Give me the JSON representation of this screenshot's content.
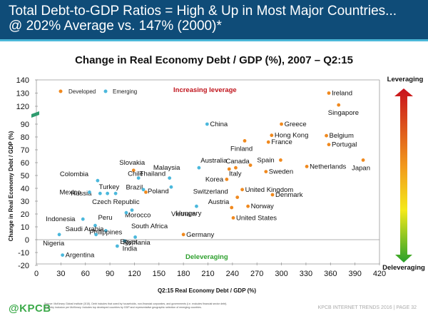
{
  "header": {
    "line1": "Total Debt-to-GDP Ratios = High & Up in Most Major Countries...",
    "line2": "@ 202% Average vs. 147% (2000)*"
  },
  "footer": {
    "logo": "@KPCB",
    "source_line1": "Source: McKinsey Global Institute (3/15). Debt includes that owed by households, non-financial corporates, and governments (i.e. excludes financial sector debt).",
    "source_line2": "*Country inclusion per McKinsey. Includes top developed countries by GDP and representative geographic selection of emerging countries.",
    "page_info": "KPCB INTERNET TRENDS 2016  |  PAGE 32"
  },
  "colors": {
    "header_bg": "#0f4c78",
    "header_stripe": "#4bb7d8",
    "developed": "#f0891e",
    "emerging": "#4bb8dc",
    "increasing_leverage": "#c0141c",
    "deleveraging": "#2ea02e",
    "logo": "#3caa4a"
  },
  "chart_data": {
    "type": "scatter",
    "title": "Change in Real Economy Debt / GDP (%), 2007 – Q2:15",
    "xlabel": "Q2:15 Real Economy Debt / GDP (%)",
    "ylabel": "Change in  Real Economy Debt / GDP (%)",
    "xlim": [
      0,
      420
    ],
    "ylim": [
      -20,
      140
    ],
    "y_axis_break": [
      90,
      120
    ],
    "x_ticks": [
      0,
      30,
      60,
      90,
      120,
      150,
      180,
      210,
      240,
      270,
      300,
      330,
      360,
      390,
      420
    ],
    "y_ticks": [
      -20,
      -10,
      0,
      10,
      20,
      30,
      40,
      50,
      60,
      70,
      80,
      90,
      120,
      130,
      140
    ],
    "grid": false,
    "legend": {
      "position": "top-left",
      "entries": [
        "Developed",
        "Emerging"
      ]
    },
    "annotations": {
      "increasing_leverage": "Increasing leverage",
      "deleveraging_inner": "Deleveraging",
      "arrow_top": "Leveraging",
      "arrow_bottom": "Deleveraging"
    },
    "series": [
      {
        "name": "Developed",
        "points": [
          {
            "label": "Ireland",
            "x": 358,
            "y": 130
          },
          {
            "label": "Singapore",
            "x": 370,
            "y": 121
          },
          {
            "label": "Hong Kong",
            "x": 288,
            "y": 98
          },
          {
            "label": "Portugal",
            "x": 358,
            "y": 91
          },
          {
            "label": "Greece",
            "x": 300,
            "y": 90
          },
          {
            "label": "Belgium",
            "x": 355,
            "y": 81
          },
          {
            "label": "France",
            "x": 284,
            "y": 76
          },
          {
            "label": "Finland",
            "x": 255,
            "y": 77
          },
          {
            "label": "Japan",
            "x": 400,
            "y": 62
          },
          {
            "label": "Spain",
            "x": 299,
            "y": 62
          },
          {
            "label": "Netherlands",
            "x": 331,
            "y": 57
          },
          {
            "label": "Canada",
            "x": 244,
            "y": 56
          },
          {
            "label": "Australia",
            "x": 236,
            "y": 55
          },
          {
            "label": "Italy",
            "x": 262,
            "y": 58
          },
          {
            "label": "Sweden",
            "x": 281,
            "y": 53
          },
          {
            "label": "Slovakia",
            "x": 119,
            "y": 54
          },
          {
            "label": "Korea",
            "x": 233,
            "y": 47
          },
          {
            "label": "United Kingdom",
            "x": 252,
            "y": 39
          },
          {
            "label": "Denmark",
            "x": 289,
            "y": 35
          },
          {
            "label": "Switzerland",
            "x": 246,
            "y": 33
          },
          {
            "label": "Brazil",
            "x": 134,
            "y": 37
          },
          {
            "label": "Austria",
            "x": 239,
            "y": 25
          },
          {
            "label": "Norway",
            "x": 259,
            "y": 26
          },
          {
            "label": "United States",
            "x": 241,
            "y": 17
          },
          {
            "label": "Germany",
            "x": 180,
            "y": 4
          }
        ]
      },
      {
        "name": "Emerging",
        "points": [
          {
            "label": "China",
            "x": 209,
            "y": 90
          },
          {
            "label": "Malaysia",
            "x": 199,
            "y": 56
          },
          {
            "label": "Thailand",
            "x": 163,
            "y": 48
          },
          {
            "label": "Chile",
            "x": 125,
            "y": 48
          },
          {
            "label": "Vietnam",
            "x": 165,
            "y": 41
          },
          {
            "label": "Colombia",
            "x": 75,
            "y": 46
          },
          {
            "label": "Russia",
            "x": 78,
            "y": 36
          },
          {
            "label": "Turkey",
            "x": 87,
            "y": 36
          },
          {
            "label": "Mexico",
            "x": 65,
            "y": 37
          },
          {
            "label": "Czech Republic",
            "x": 97,
            "y": 36
          },
          {
            "label": "Poland",
            "x": 131,
            "y": 39
          },
          {
            "label": "Morocco",
            "x": 117,
            "y": 23
          },
          {
            "label": "South Africa",
            "x": 110,
            "y": 21
          },
          {
            "label": "Hungary",
            "x": 196,
            "y": 26
          },
          {
            "label": "Indonesia",
            "x": 57,
            "y": 16
          },
          {
            "label": "Peru",
            "x": 72,
            "y": 11
          },
          {
            "label": "Philippines",
            "x": 85,
            "y": 7
          },
          {
            "label": "Saudi Arabia",
            "x": 73,
            "y": 4
          },
          {
            "label": "Romania",
            "x": 108,
            "y": -1
          },
          {
            "label": "India",
            "x": 121,
            "y": 2
          },
          {
            "label": "Nigeria",
            "x": 28,
            "y": 4
          },
          {
            "label": "Egypt",
            "x": 99,
            "y": -5
          },
          {
            "label": "Argentina",
            "x": 32,
            "y": -12
          }
        ]
      }
    ]
  }
}
